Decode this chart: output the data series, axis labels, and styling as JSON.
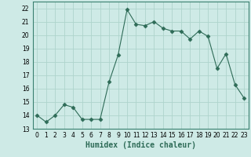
{
  "xlabel": "Humidex (Indice chaleur)",
  "x": [
    0,
    1,
    2,
    3,
    4,
    5,
    6,
    7,
    8,
    9,
    10,
    11,
    12,
    13,
    14,
    15,
    16,
    17,
    18,
    19,
    20,
    21,
    22,
    23
  ],
  "y": [
    14.0,
    13.5,
    14.0,
    14.8,
    14.6,
    13.7,
    13.7,
    13.7,
    16.5,
    18.5,
    21.9,
    20.8,
    20.7,
    21.0,
    20.5,
    20.3,
    20.3,
    19.7,
    20.3,
    19.9,
    17.5,
    18.6,
    16.3,
    15.3
  ],
  "line_color": "#2E6B57",
  "marker": "D",
  "marker_size": 2.5,
  "bg_color": "#ceeae6",
  "grid_color": "#aed4cc",
  "ylim": [
    13,
    22.5
  ],
  "xlim": [
    -0.5,
    23.5
  ],
  "yticks": [
    13,
    14,
    15,
    16,
    17,
    18,
    19,
    20,
    21,
    22
  ],
  "xticks": [
    0,
    1,
    2,
    3,
    4,
    5,
    6,
    7,
    8,
    9,
    10,
    11,
    12,
    13,
    14,
    15,
    16,
    17,
    18,
    19,
    20,
    21,
    22,
    23
  ],
  "tick_fontsize": 5.5,
  "label_fontsize": 7
}
